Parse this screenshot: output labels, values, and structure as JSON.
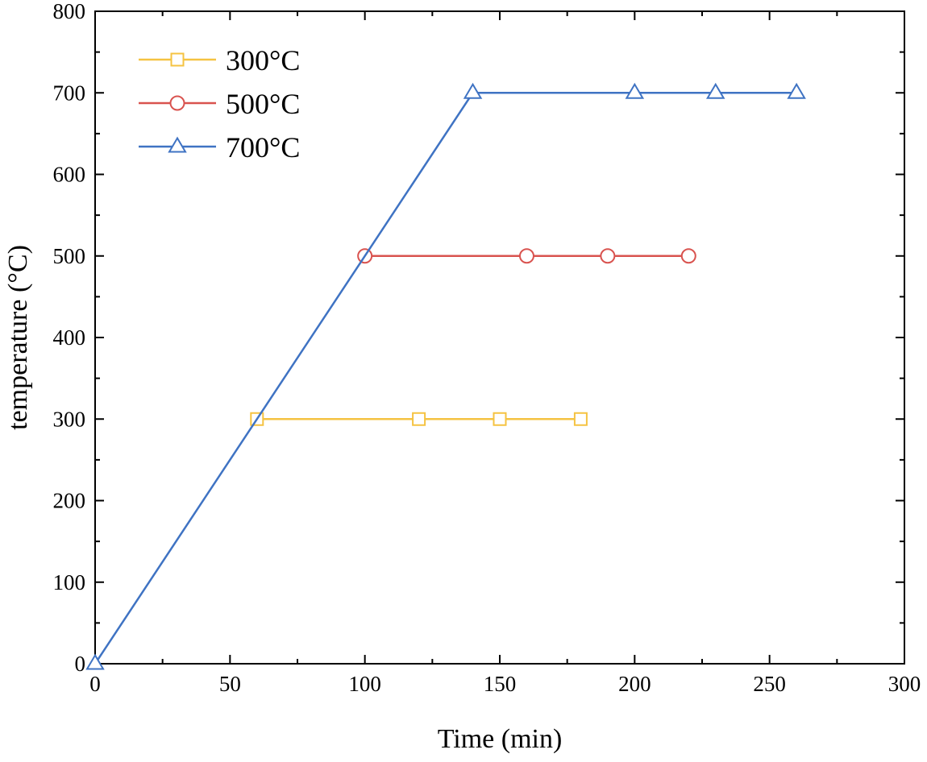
{
  "chart_data": {
    "type": "line",
    "title": "",
    "xlabel": "Time (min)",
    "ylabel": "temperature (°C)",
    "xlim": [
      0,
      300
    ],
    "ylim": [
      0,
      800
    ],
    "xticks": [
      0,
      50,
      100,
      150,
      200,
      250,
      300
    ],
    "yticks": [
      0,
      100,
      200,
      300,
      400,
      500,
      600,
      700,
      800
    ],
    "grid": false,
    "legend_position": "top-left",
    "series": [
      {
        "name": "300°C",
        "color": "#F5C342",
        "marker": "square",
        "line_points": [
          {
            "x": 60,
            "y": 300
          },
          {
            "x": 180,
            "y": 300
          }
        ],
        "marker_points": [
          {
            "x": 60,
            "y": 300
          },
          {
            "x": 120,
            "y": 300
          },
          {
            "x": 150,
            "y": 300
          },
          {
            "x": 180,
            "y": 300
          }
        ]
      },
      {
        "name": "500°C",
        "color": "#D9534F",
        "marker": "circle",
        "line_points": [
          {
            "x": 100,
            "y": 500
          },
          {
            "x": 220,
            "y": 500
          }
        ],
        "marker_points": [
          {
            "x": 100,
            "y": 500
          },
          {
            "x": 160,
            "y": 500
          },
          {
            "x": 190,
            "y": 500
          },
          {
            "x": 220,
            "y": 500
          }
        ]
      },
      {
        "name": "700°C",
        "color": "#3F73C3",
        "marker": "triangle",
        "line_points": [
          {
            "x": 0,
            "y": 0
          },
          {
            "x": 140,
            "y": 700
          },
          {
            "x": 260,
            "y": 700
          }
        ],
        "marker_points": [
          {
            "x": 0,
            "y": 0
          },
          {
            "x": 140,
            "y": 700
          },
          {
            "x": 200,
            "y": 700
          },
          {
            "x": 230,
            "y": 700
          },
          {
            "x": 260,
            "y": 700
          }
        ]
      }
    ]
  }
}
